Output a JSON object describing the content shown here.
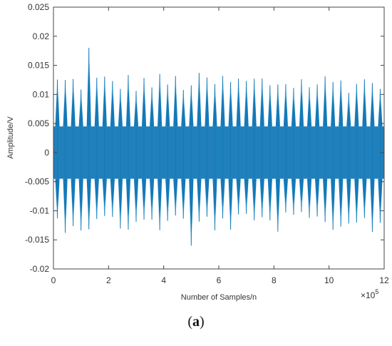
{
  "chart_data": {
    "type": "line",
    "title": "",
    "xlabel": "Number of Samples/n",
    "ylabel": "Amplitude/V",
    "x_exponent_label": "×10",
    "x_exponent_power": "5",
    "xlim": [
      0,
      12
    ],
    "ylim": [
      -0.02,
      0.025
    ],
    "x_ticks": [
      "0",
      "2",
      "4",
      "6",
      "8",
      "10",
      "12"
    ],
    "y_ticks": [
      "-0.02",
      "-0.015",
      "-0.01",
      "-0.005",
      "0",
      "0.005",
      "0.01",
      "0.015",
      "0.02",
      "0.025"
    ],
    "grid": false,
    "series_color": "#1479b8",
    "envelope_color": "#3aa3d6",
    "burst_count": 42,
    "baseline_amplitude": 0.0045,
    "peak_upper_typical": 0.012,
    "peak_lower_typical": -0.012,
    "peak_max": 0.018,
    "peak_min": -0.016
  },
  "caption": {
    "open": "(",
    "letter": "a",
    "close": ")"
  }
}
